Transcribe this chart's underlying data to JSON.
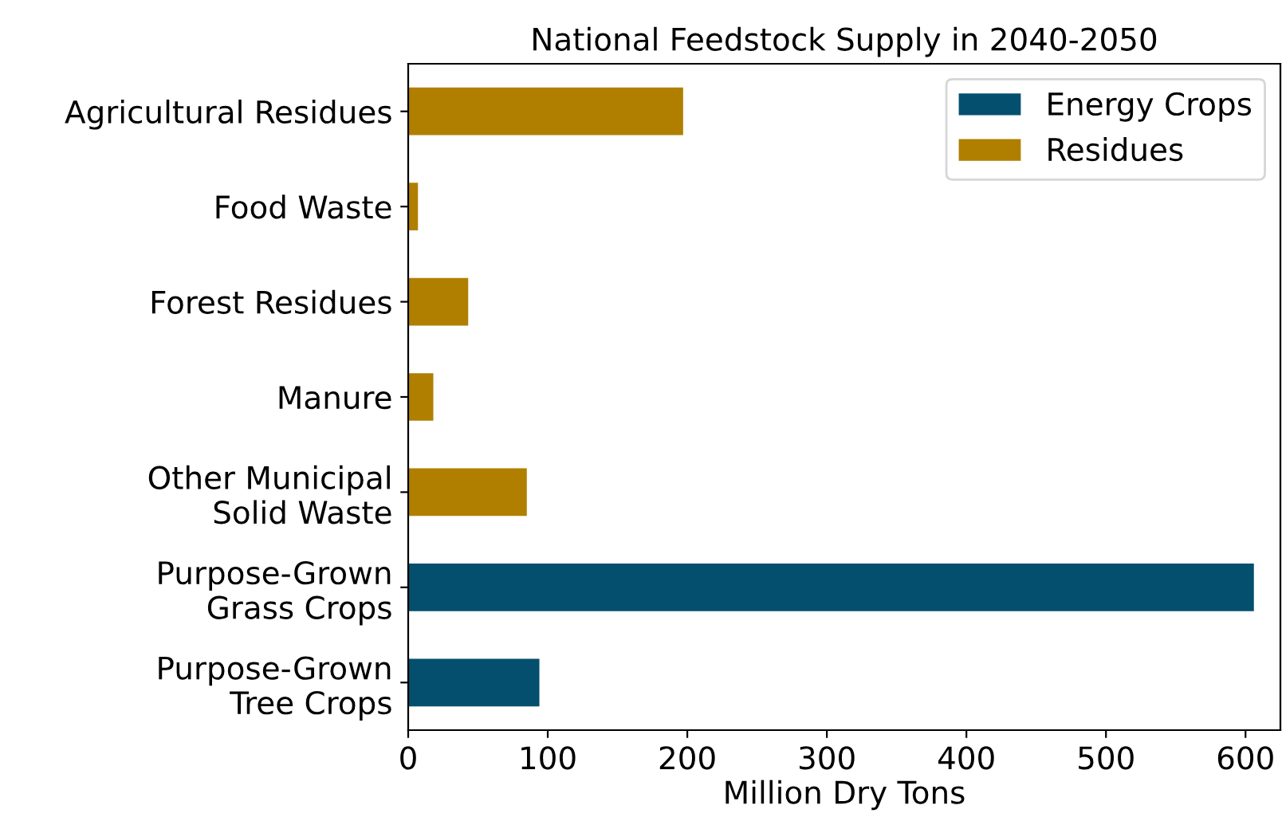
{
  "chart_data": {
    "type": "bar",
    "orientation": "horizontal",
    "title": "National Feedstock Supply in 2040-2050",
    "xlabel": "Million Dry Tons",
    "categories": [
      "Agricultural Residues",
      "Food Waste",
      "Forest Residues",
      "Manure",
      "Other Municipal\nSolid Waste",
      "Purpose-Grown\nGrass Crops",
      "Purpose-Grown\nTree Crops"
    ],
    "series": [
      {
        "name": "Energy Crops",
        "color": "#044f6e",
        "values": [
          null,
          null,
          null,
          null,
          null,
          606,
          94
        ]
      },
      {
        "name": "Residues",
        "color": "#b07f00",
        "values": [
          197,
          7,
          43,
          18,
          85,
          null,
          null
        ]
      }
    ],
    "xlim": [
      0,
      625
    ],
    "xticks": [
      0,
      100,
      200,
      300,
      400,
      500,
      600
    ],
    "grid": false,
    "legend": "top right"
  }
}
